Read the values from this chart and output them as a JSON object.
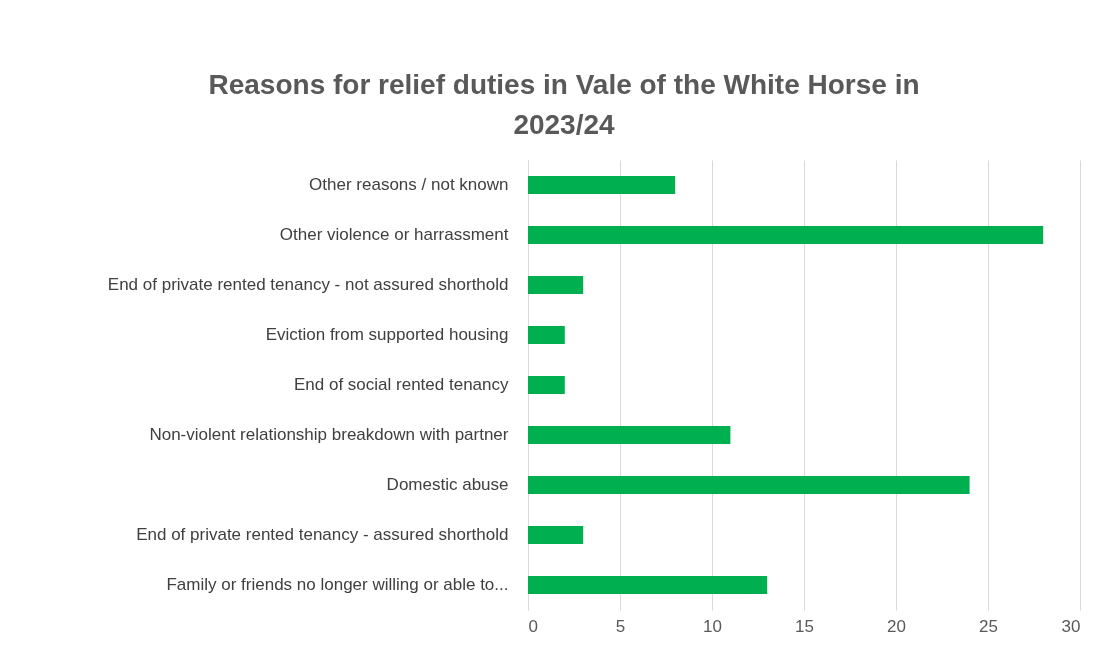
{
  "chart_data": {
    "type": "bar",
    "orientation": "horizontal",
    "title": "Reasons for relief duties in Vale of the White Horse in 2023/24",
    "categories": [
      "Other reasons / not known",
      "Other violence or harrassment",
      "End of private rented tenancy - not assured shorthold",
      "Eviction from supported housing",
      "End of social rented tenancy",
      "Non-violent relationship breakdown with partner",
      "Domestic abuse",
      "End of private rented tenancy - assured shorthold",
      "Family or friends no longer willing or able to..."
    ],
    "values": [
      8,
      28,
      3,
      2,
      2,
      11,
      24,
      3,
      13
    ],
    "color": "#00b050",
    "xlim": [
      0,
      30
    ],
    "xticks": [
      0,
      5,
      10,
      15,
      20,
      25,
      30
    ],
    "grid": "x"
  }
}
